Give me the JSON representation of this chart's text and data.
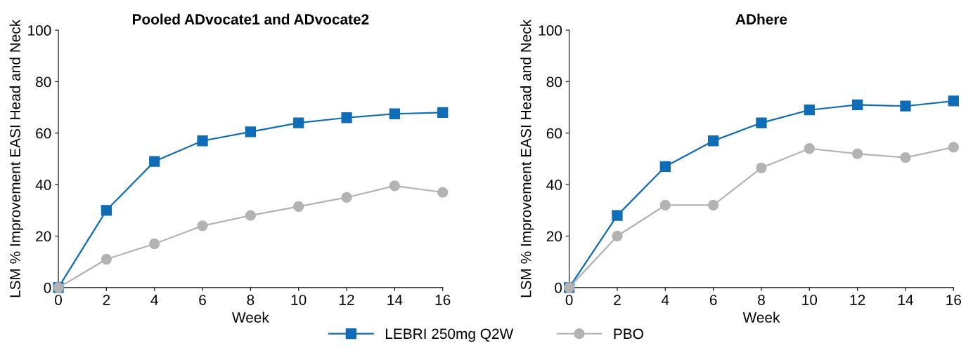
{
  "chart_data": [
    {
      "type": "line",
      "title": "Pooled ADvocate1 and ADvocate2",
      "xlabel": "Week",
      "ylabel": "LSM % Improvement EASI Head and Neck",
      "x": [
        0,
        2,
        4,
        6,
        8,
        10,
        12,
        14,
        16
      ],
      "xlim": [
        0,
        16
      ],
      "xticks": [
        0,
        2,
        4,
        6,
        8,
        10,
        12,
        14,
        16
      ],
      "ylim": [
        0,
        100
      ],
      "yticks": [
        0,
        20,
        40,
        60,
        80,
        100
      ],
      "legend": "bottom",
      "grid": false,
      "line_style": "solid",
      "series": [
        {
          "name": "LEBRI 250mg Q2W",
          "color": "#0f6cb6",
          "marker": "square",
          "values": [
            0,
            30,
            49,
            57,
            60.5,
            64,
            66,
            67.5,
            68
          ]
        },
        {
          "name": "PBO",
          "color": "#b3b3b3",
          "marker": "circle",
          "values": [
            0,
            11,
            17,
            24,
            28,
            31.5,
            35,
            39.5,
            37
          ]
        }
      ]
    },
    {
      "type": "line",
      "title": "ADhere",
      "xlabel": "Week",
      "ylabel": "LSM % Improvement EASI Head and Neck",
      "x": [
        0,
        2,
        4,
        6,
        8,
        10,
        12,
        14,
        16
      ],
      "xlim": [
        0,
        16
      ],
      "xticks": [
        0,
        2,
        4,
        6,
        8,
        10,
        12,
        14,
        16
      ],
      "ylim": [
        0,
        100
      ],
      "yticks": [
        0,
        20,
        40,
        60,
        80,
        100
      ],
      "grid": false,
      "line_style": "solid",
      "series": [
        {
          "color": "#0f6cb6",
          "marker": "square",
          "values": [
            0,
            28,
            47,
            57,
            64,
            69,
            71,
            70.5,
            72.5
          ]
        },
        {
          "color": "#b3b3b3",
          "marker": "circle",
          "values": [
            0,
            20,
            32,
            32,
            46.5,
            54,
            52,
            50.5,
            54.5
          ]
        }
      ]
    }
  ]
}
